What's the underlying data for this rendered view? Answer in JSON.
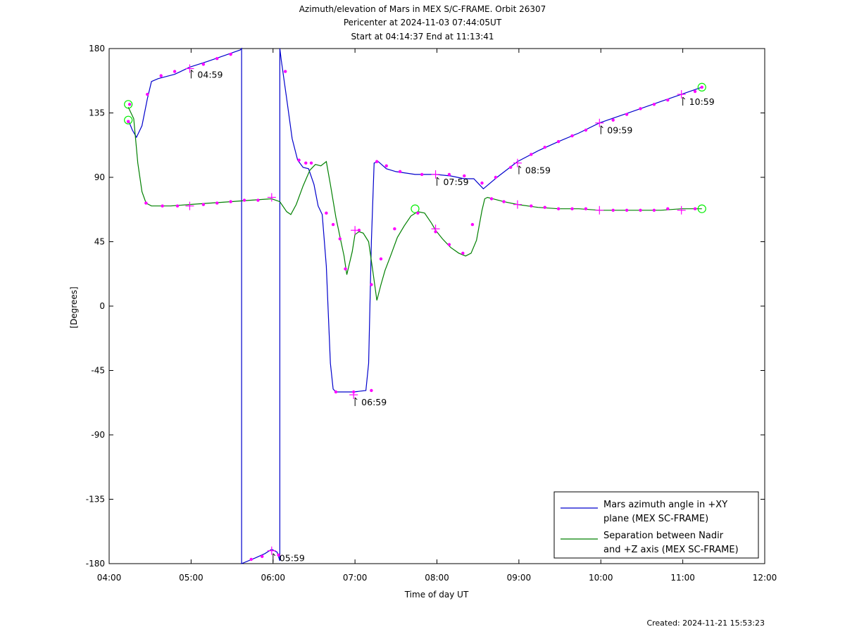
{
  "chart_data": {
    "type": "line",
    "title_lines": [
      "Azimuth/elevation of Mars in MEX S/C-FRAME.  Orbit 26307",
      "Pericenter at 2024-11-03 07:44:05UT",
      "Start at 04:14:37 End at 11:13:41"
    ],
    "xlabel": "Time of day UT",
    "ylabel": "[Degrees]",
    "xlim": [
      "04:00",
      "12:00"
    ],
    "ylim": [
      -180,
      180
    ],
    "x_ticks": [
      "04:00",
      "05:00",
      "06:00",
      "07:00",
      "08:00",
      "09:00",
      "10:00",
      "11:00",
      "12:00"
    ],
    "y_ticks": [
      180,
      135,
      90,
      45,
      0,
      -45,
      -90,
      -135,
      -180
    ],
    "grid": false,
    "legend_position": "bottom-right",
    "series": [
      {
        "name": "Mars azimuth angle in +XY plane (MEX SC-FRAME)",
        "color": "#0000cc",
        "points": [
          [
            "04:14",
            130
          ],
          [
            "04:17",
            123
          ],
          [
            "04:20",
            118
          ],
          [
            "04:24",
            126
          ],
          [
            "04:28",
            145
          ],
          [
            "04:31",
            157
          ],
          [
            "04:36",
            159
          ],
          [
            "04:48",
            162
          ],
          [
            "04:59",
            167
          ],
          [
            "05:12",
            171
          ],
          [
            "05:24",
            175
          ],
          [
            "05:36",
            179
          ],
          [
            "05:37",
            180
          ],
          [
            "05:37",
            -180
          ],
          [
            "05:47",
            -176
          ],
          [
            "05:54",
            -173
          ],
          [
            "05:59",
            -170
          ],
          [
            "06:03",
            -172
          ],
          [
            "06:05",
            -178
          ],
          [
            "06:05",
            180
          ],
          [
            "06:06",
            172
          ],
          [
            "06:10",
            145
          ],
          [
            "06:14",
            117
          ],
          [
            "06:18",
            102
          ],
          [
            "06:22",
            97
          ],
          [
            "06:26",
            96
          ],
          [
            "06:30",
            85
          ],
          [
            "06:33",
            70
          ],
          [
            "06:36",
            64
          ],
          [
            "06:39",
            28
          ],
          [
            "06:42",
            -40
          ],
          [
            "06:44",
            -58
          ],
          [
            "06:46",
            -60
          ],
          [
            "06:59",
            -60
          ],
          [
            "07:08",
            -59
          ],
          [
            "07:10",
            -40
          ],
          [
            "07:12",
            45
          ],
          [
            "07:14",
            100
          ],
          [
            "07:17",
            101
          ],
          [
            "07:23",
            96
          ],
          [
            "07:30",
            94
          ],
          [
            "07:44",
            92
          ],
          [
            "07:59",
            92
          ],
          [
            "08:10",
            91
          ],
          [
            "08:20",
            89
          ],
          [
            "08:27",
            89
          ],
          [
            "08:31",
            85
          ],
          [
            "08:34",
            82
          ],
          [
            "08:44",
            90
          ],
          [
            "08:59",
            101
          ],
          [
            "09:15",
            109
          ],
          [
            "09:29",
            115
          ],
          [
            "09:44",
            121
          ],
          [
            "09:59",
            128
          ],
          [
            "10:14",
            133
          ],
          [
            "10:29",
            138
          ],
          [
            "10:44",
            143
          ],
          [
            "10:59",
            148
          ],
          [
            "11:14",
            153
          ]
        ],
        "markers": [
          [
            "04:14",
            129
          ],
          [
            "04:15",
            141
          ],
          [
            "04:28",
            148
          ],
          [
            "04:38",
            161
          ],
          [
            "04:48",
            164
          ],
          [
            "05:09",
            169
          ],
          [
            "05:19",
            173
          ],
          [
            "05:29",
            176
          ],
          [
            "05:44",
            -177
          ],
          [
            "05:52",
            -175
          ],
          [
            "06:04",
            -174
          ],
          [
            "06:09",
            164
          ],
          [
            "06:19",
            102
          ],
          [
            "06:24",
            100
          ],
          [
            "06:46",
            -60
          ],
          [
            "06:59",
            -60
          ],
          [
            "07:12",
            -59
          ],
          [
            "07:16",
            101
          ],
          [
            "07:23",
            98
          ],
          [
            "07:33",
            94
          ],
          [
            "07:49",
            92
          ],
          [
            "08:09",
            92
          ],
          [
            "08:20",
            91
          ],
          [
            "08:33",
            86
          ],
          [
            "08:43",
            90
          ],
          [
            "08:54",
            97
          ],
          [
            "09:09",
            106
          ],
          [
            "09:19",
            111
          ],
          [
            "09:29",
            115
          ],
          [
            "09:39",
            119
          ],
          [
            "09:49",
            123
          ],
          [
            "10:09",
            130
          ],
          [
            "10:19",
            134
          ],
          [
            "10:29",
            138
          ],
          [
            "10:39",
            141
          ],
          [
            "10:49",
            144
          ],
          [
            "11:09",
            150
          ],
          [
            "11:14",
            153
          ]
        ],
        "crosses": [
          [
            "04:59",
            166
          ],
          [
            "05:59",
            -171
          ],
          [
            "06:59",
            -62
          ],
          [
            "07:59",
            92
          ],
          [
            "08:59",
            100
          ],
          [
            "09:59",
            128
          ],
          [
            "10:59",
            148
          ]
        ],
        "circles": [
          [
            "04:14",
            141
          ],
          [
            "11:14",
            153
          ]
        ]
      },
      {
        "name": "Separation between Nadir and +Z axis (MEX SC-FRAME)",
        "color": "#008000",
        "points": [
          [
            "04:14",
            139
          ],
          [
            "04:18",
            131
          ],
          [
            "04:21",
            100
          ],
          [
            "04:24",
            80
          ],
          [
            "04:27",
            72
          ],
          [
            "04:31",
            70
          ],
          [
            "04:45",
            70
          ],
          [
            "04:59",
            71
          ],
          [
            "05:14",
            72
          ],
          [
            "05:29",
            73
          ],
          [
            "05:44",
            74
          ],
          [
            "05:59",
            75
          ],
          [
            "06:05",
            73
          ],
          [
            "06:10",
            66
          ],
          [
            "06:13",
            64
          ],
          [
            "06:17",
            71
          ],
          [
            "06:22",
            84
          ],
          [
            "06:27",
            95
          ],
          [
            "06:31",
            99
          ],
          [
            "06:35",
            98
          ],
          [
            "06:39",
            101
          ],
          [
            "06:42",
            85
          ],
          [
            "06:46",
            62
          ],
          [
            "06:50",
            44
          ],
          [
            "06:52",
            35
          ],
          [
            "06:54",
            22
          ],
          [
            "06:58",
            38
          ],
          [
            "07:00",
            50
          ],
          [
            "07:03",
            52
          ],
          [
            "07:06",
            51
          ],
          [
            "07:10",
            45
          ],
          [
            "07:13",
            25
          ],
          [
            "07:16",
            4
          ],
          [
            "07:19",
            15
          ],
          [
            "07:22",
            25
          ],
          [
            "07:26",
            35
          ],
          [
            "07:31",
            48
          ],
          [
            "07:36",
            56
          ],
          [
            "07:41",
            63
          ],
          [
            "07:46",
            66
          ],
          [
            "07:51",
            65
          ],
          [
            "07:56",
            58
          ],
          [
            "07:59",
            53
          ],
          [
            "08:04",
            47
          ],
          [
            "08:10",
            41
          ],
          [
            "08:16",
            37
          ],
          [
            "08:21",
            35
          ],
          [
            "08:25",
            37
          ],
          [
            "08:29",
            46
          ],
          [
            "08:33",
            67
          ],
          [
            "08:35",
            75
          ],
          [
            "08:37",
            76
          ],
          [
            "08:49",
            73
          ],
          [
            "08:59",
            71
          ],
          [
            "09:14",
            69
          ],
          [
            "09:29",
            68
          ],
          [
            "09:44",
            68
          ],
          [
            "09:59",
            67
          ],
          [
            "10:14",
            67
          ],
          [
            "10:29",
            67
          ],
          [
            "10:44",
            67
          ],
          [
            "10:59",
            68
          ],
          [
            "11:14",
            68
          ]
        ],
        "markers": [
          [
            "04:14",
            129
          ],
          [
            "04:27",
            72
          ],
          [
            "04:39",
            70
          ],
          [
            "04:50",
            70
          ],
          [
            "05:09",
            71
          ],
          [
            "05:19",
            72
          ],
          [
            "05:29",
            73
          ],
          [
            "05:39",
            74
          ],
          [
            "05:49",
            74
          ],
          [
            "06:28",
            100
          ],
          [
            "06:39",
            65
          ],
          [
            "06:44",
            57
          ],
          [
            "06:49",
            47
          ],
          [
            "06:53",
            26
          ],
          [
            "07:03",
            53
          ],
          [
            "07:12",
            15
          ],
          [
            "07:19",
            33
          ],
          [
            "07:29",
            54
          ],
          [
            "07:46",
            65
          ],
          [
            "07:59",
            52
          ],
          [
            "08:09",
            43
          ],
          [
            "08:19",
            37
          ],
          [
            "08:26",
            57
          ],
          [
            "08:40",
            75
          ],
          [
            "08:49",
            73
          ],
          [
            "09:09",
            70
          ],
          [
            "09:19",
            69
          ],
          [
            "09:29",
            68
          ],
          [
            "09:39",
            68
          ],
          [
            "09:49",
            68
          ],
          [
            "10:09",
            67
          ],
          [
            "10:19",
            67
          ],
          [
            "10:29",
            67
          ],
          [
            "10:39",
            67
          ],
          [
            "10:49",
            68
          ],
          [
            "11:09",
            68
          ]
        ],
        "crosses": [
          [
            "04:59",
            70
          ],
          [
            "05:59",
            76
          ],
          [
            "07:00",
            53
          ],
          [
            "07:59",
            54
          ],
          [
            "08:59",
            71
          ],
          [
            "09:59",
            67
          ],
          [
            "10:59",
            67
          ]
        ],
        "circles": [
          [
            "04:14",
            130
          ],
          [
            "07:44",
            68
          ],
          [
            "11:14",
            68
          ]
        ]
      }
    ],
    "annotations": [
      {
        "x": "04:59",
        "y": 167,
        "text": "04:59"
      },
      {
        "x": "05:59",
        "y": -171,
        "text": "05:59"
      },
      {
        "x": "06:59",
        "y": -62,
        "text": "06:59"
      },
      {
        "x": "07:59",
        "y": 92,
        "text": "07:59"
      },
      {
        "x": "08:59",
        "y": 100,
        "text": "08:59"
      },
      {
        "x": "09:59",
        "y": 128,
        "text": "09:59"
      },
      {
        "x": "10:59",
        "y": 148,
        "text": "10:59"
      }
    ],
    "legend_lines": [
      [
        "Mars azimuth angle in +XY",
        "plane (MEX SC-FRAME)"
      ],
      [
        "Separation between Nadir",
        "and +Z axis (MEX SC-FRAME)"
      ]
    ],
    "footer": "Created: 2024-11-21 15:53:23",
    "marker_color": "#ff00ff",
    "circle_color": "#00ee00"
  }
}
